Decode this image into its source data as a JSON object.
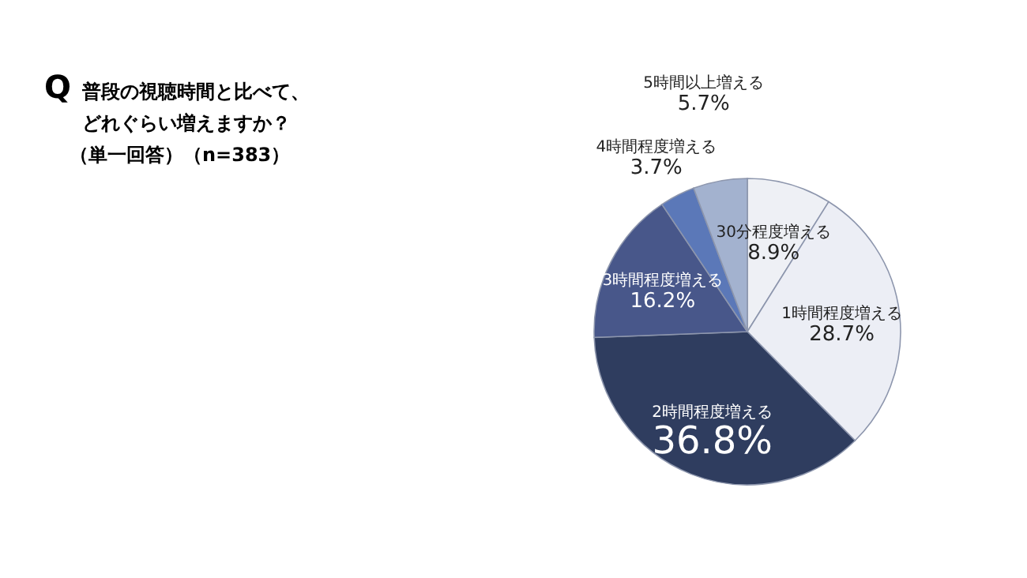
{
  "chart_data": {
    "type": "pie",
    "title": "普段の視聴時間と比べて、どれぐらい増えますか？",
    "subtitle": "（単一回答）（n=383）",
    "annotations": [
      "Q"
    ],
    "categories": [
      "30分程度増える",
      "1時間程度増える",
      "2時間程度増える",
      "3時間程度増える",
      "4時間程度増える",
      "5時間以上増える"
    ],
    "values": [
      8.9,
      28.7,
      36.8,
      16.2,
      3.7,
      5.7
    ],
    "colors": [
      "#eef0f5",
      "#eceef5",
      "#2f3d5f",
      "#48578a",
      "#5b78b8",
      "#a3b2cf"
    ],
    "value_labels": [
      "8.9%",
      "28.7%",
      "36.8%",
      "16.2%",
      "3.7%",
      "5.7%"
    ]
  }
}
